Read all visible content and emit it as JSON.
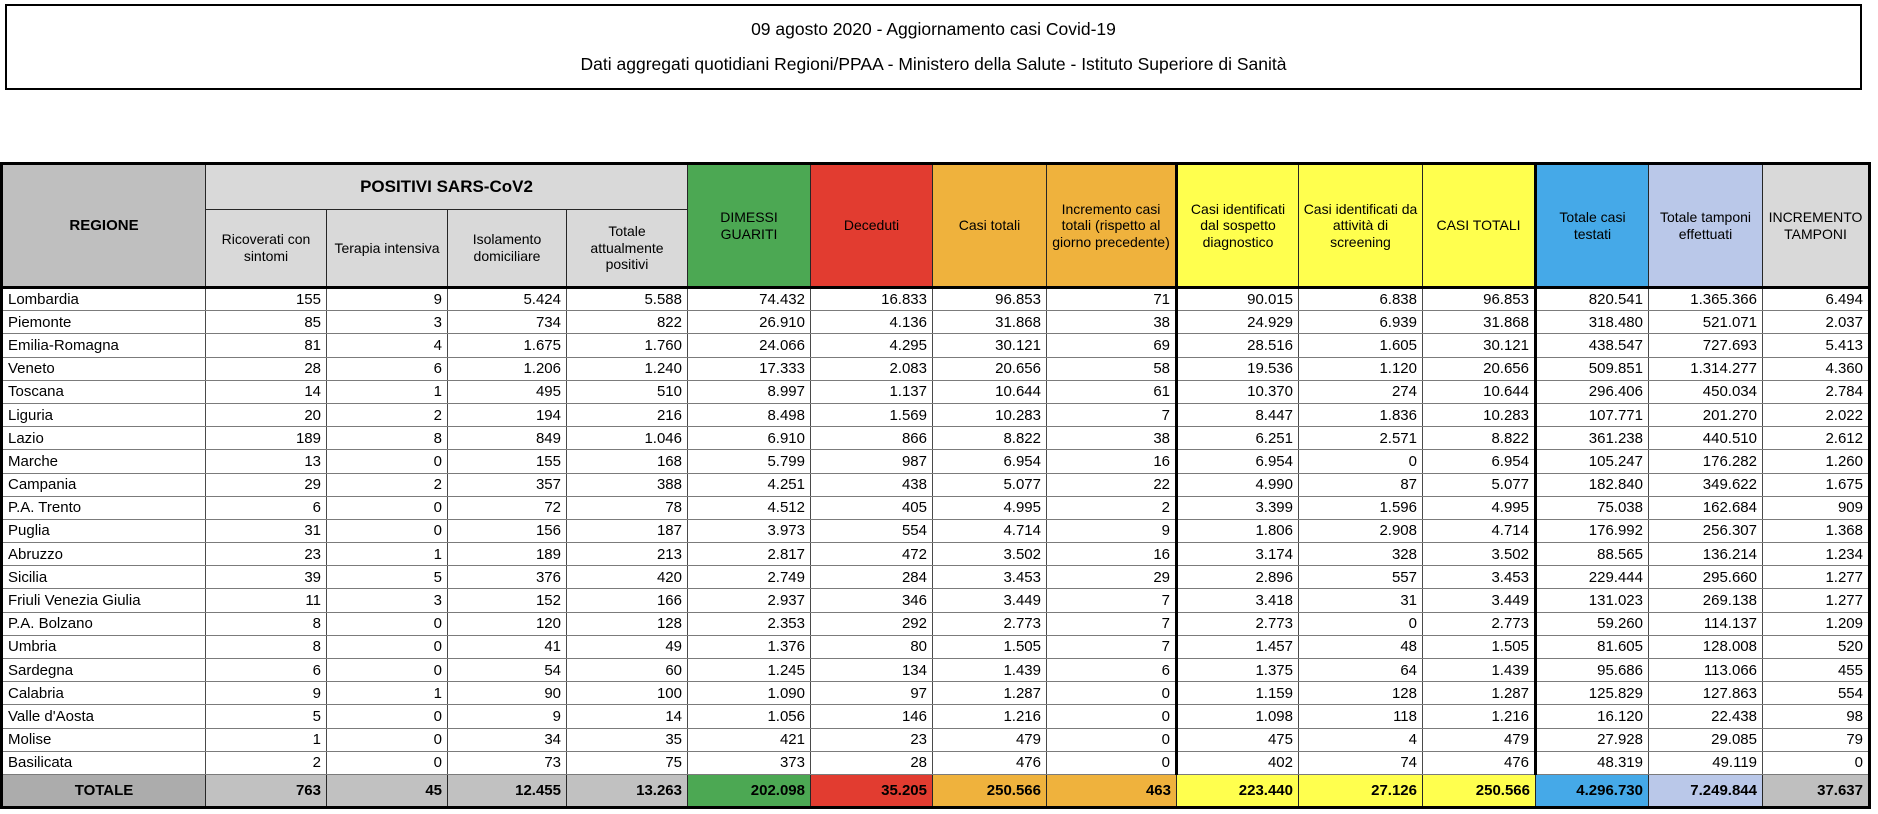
{
  "title": {
    "line1": "09 agosto 2020 - Aggiornamento casi Covid-19",
    "line2": "Dati aggregati quotidiani Regioni/PPAA - Ministero della Salute - Istituto Superiore di Sanità"
  },
  "colors": {
    "headerGray": "#BFBFBF",
    "subGray": "#D9D9D9",
    "green": "#4CA853",
    "red": "#E23C30",
    "orange": "#EFB23D",
    "yellow": "#FFFF4E",
    "blue": "#45A9E8",
    "lavender": "#BAC8E9",
    "totalLabelGray": "#ACACAC",
    "totalCellGray": "#C1C1C1"
  },
  "table": {
    "region_header": "REGIONE",
    "group_header": "POSITIVI SARS-CoV2",
    "sub_headers": [
      "Ricoverati con sintomi",
      "Terapia intensiva",
      "Isolamento domiciliare",
      "Totale attualmente positivi"
    ],
    "col_headers": [
      "DIMESSI GUARITI",
      "Deceduti",
      "Casi totali",
      "Incremento casi totali (rispetto al giorno precedente)",
      "Casi identificati dal sospetto diagnostico",
      "Casi identificati da attività di screening",
      "CASI TOTALI",
      "Totale casi testati",
      "Totale tamponi effettuati",
      "INCREMENTO TAMPONI"
    ],
    "rows": [
      {
        "region": "Lombardia",
        "values": [
          "155",
          "9",
          "5.424",
          "5.588",
          "74.432",
          "16.833",
          "96.853",
          "71",
          "90.015",
          "6.838",
          "96.853",
          "820.541",
          "1.365.366",
          "6.494"
        ]
      },
      {
        "region": "Piemonte",
        "values": [
          "85",
          "3",
          "734",
          "822",
          "26.910",
          "4.136",
          "31.868",
          "38",
          "24.929",
          "6.939",
          "31.868",
          "318.480",
          "521.071",
          "2.037"
        ]
      },
      {
        "region": "Emilia-Romagna",
        "values": [
          "81",
          "4",
          "1.675",
          "1.760",
          "24.066",
          "4.295",
          "30.121",
          "69",
          "28.516",
          "1.605",
          "30.121",
          "438.547",
          "727.693",
          "5.413"
        ]
      },
      {
        "region": "Veneto",
        "values": [
          "28",
          "6",
          "1.206",
          "1.240",
          "17.333",
          "2.083",
          "20.656",
          "58",
          "19.536",
          "1.120",
          "20.656",
          "509.851",
          "1.314.277",
          "4.360"
        ]
      },
      {
        "region": "Toscana",
        "values": [
          "14",
          "1",
          "495",
          "510",
          "8.997",
          "1.137",
          "10.644",
          "61",
          "10.370",
          "274",
          "10.644",
          "296.406",
          "450.034",
          "2.784"
        ]
      },
      {
        "region": "Liguria",
        "values": [
          "20",
          "2",
          "194",
          "216",
          "8.498",
          "1.569",
          "10.283",
          "7",
          "8.447",
          "1.836",
          "10.283",
          "107.771",
          "201.270",
          "2.022"
        ]
      },
      {
        "region": "Lazio",
        "values": [
          "189",
          "8",
          "849",
          "1.046",
          "6.910",
          "866",
          "8.822",
          "38",
          "6.251",
          "2.571",
          "8.822",
          "361.238",
          "440.510",
          "2.612"
        ]
      },
      {
        "region": "Marche",
        "values": [
          "13",
          "0",
          "155",
          "168",
          "5.799",
          "987",
          "6.954",
          "16",
          "6.954",
          "0",
          "6.954",
          "105.247",
          "176.282",
          "1.260"
        ]
      },
      {
        "region": "Campania",
        "values": [
          "29",
          "2",
          "357",
          "388",
          "4.251",
          "438",
          "5.077",
          "22",
          "4.990",
          "87",
          "5.077",
          "182.840",
          "349.622",
          "1.675"
        ]
      },
      {
        "region": "P.A. Trento",
        "values": [
          "6",
          "0",
          "72",
          "78",
          "4.512",
          "405",
          "4.995",
          "2",
          "3.399",
          "1.596",
          "4.995",
          "75.038",
          "162.684",
          "909"
        ]
      },
      {
        "region": "Puglia",
        "values": [
          "31",
          "0",
          "156",
          "187",
          "3.973",
          "554",
          "4.714",
          "9",
          "1.806",
          "2.908",
          "4.714",
          "176.992",
          "256.307",
          "1.368"
        ]
      },
      {
        "region": "Abruzzo",
        "values": [
          "23",
          "1",
          "189",
          "213",
          "2.817",
          "472",
          "3.502",
          "16",
          "3.174",
          "328",
          "3.502",
          "88.565",
          "136.214",
          "1.234"
        ]
      },
      {
        "region": "Sicilia",
        "values": [
          "39",
          "5",
          "376",
          "420",
          "2.749",
          "284",
          "3.453",
          "29",
          "2.896",
          "557",
          "3.453",
          "229.444",
          "295.660",
          "1.277"
        ]
      },
      {
        "region": "Friuli Venezia Giulia",
        "values": [
          "11",
          "3",
          "152",
          "166",
          "2.937",
          "346",
          "3.449",
          "7",
          "3.418",
          "31",
          "3.449",
          "131.023",
          "269.138",
          "1.277"
        ]
      },
      {
        "region": "P.A. Bolzano",
        "values": [
          "8",
          "0",
          "120",
          "128",
          "2.353",
          "292",
          "2.773",
          "7",
          "2.773",
          "0",
          "2.773",
          "59.260",
          "114.137",
          "1.209"
        ]
      },
      {
        "region": "Umbria",
        "values": [
          "8",
          "0",
          "41",
          "49",
          "1.376",
          "80",
          "1.505",
          "7",
          "1.457",
          "48",
          "1.505",
          "81.605",
          "128.008",
          "520"
        ]
      },
      {
        "region": "Sardegna",
        "values": [
          "6",
          "0",
          "54",
          "60",
          "1.245",
          "134",
          "1.439",
          "6",
          "1.375",
          "64",
          "1.439",
          "95.686",
          "113.066",
          "455"
        ]
      },
      {
        "region": "Calabria",
        "values": [
          "9",
          "1",
          "90",
          "100",
          "1.090",
          "97",
          "1.287",
          "0",
          "1.159",
          "128",
          "1.287",
          "125.829",
          "127.863",
          "554"
        ]
      },
      {
        "region": "Valle d'Aosta",
        "values": [
          "5",
          "0",
          "9",
          "14",
          "1.056",
          "146",
          "1.216",
          "0",
          "1.098",
          "118",
          "1.216",
          "16.120",
          "22.438",
          "98"
        ]
      },
      {
        "region": "Molise",
        "values": [
          "1",
          "0",
          "34",
          "35",
          "421",
          "23",
          "479",
          "0",
          "475",
          "4",
          "479",
          "27.928",
          "29.085",
          "79"
        ]
      },
      {
        "region": "Basilicata",
        "values": [
          "2",
          "0",
          "73",
          "75",
          "373",
          "28",
          "476",
          "0",
          "402",
          "74",
          "476",
          "48.319",
          "49.119",
          "0"
        ]
      }
    ],
    "totals": {
      "label": "TOTALE",
      "values": [
        "763",
        "45",
        "12.455",
        "13.263",
        "202.098",
        "35.205",
        "250.566",
        "463",
        "223.440",
        "27.126",
        "250.566",
        "4.296.730",
        "7.249.844",
        "37.637"
      ]
    }
  }
}
